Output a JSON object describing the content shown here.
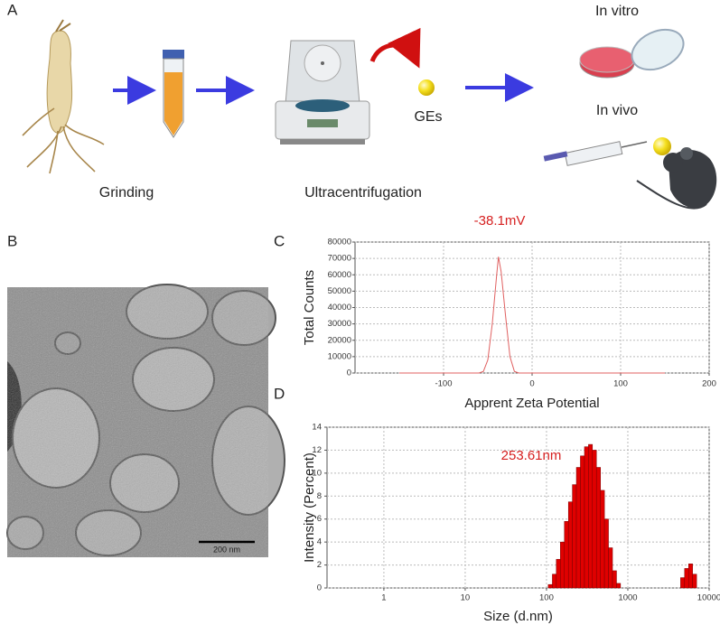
{
  "panel_labels": [
    "A",
    "B",
    "C",
    "D"
  ],
  "diagram": {
    "steps": [
      "Grinding",
      "Ultracentrifugation"
    ],
    "product": "GEs",
    "in_vitro": "In vitro",
    "in_vivo": "In vivo"
  },
  "micrograph": {
    "scale_bar": "200 nm"
  },
  "chart_data": [
    {
      "type": "line",
      "annotation": "-38.1mV",
      "annotation_color": "#d62020",
      "xlabel": "Apprent Zeta Potential",
      "ylabel": "Total Counts",
      "x": [
        -150,
        -60,
        -55,
        -50,
        -45,
        -40,
        -38,
        -35,
        -30,
        -25,
        -20,
        -15,
        150
      ],
      "series": [
        {
          "color": "#e06060",
          "values": [
            0,
            0,
            1000,
            8000,
            30000,
            60000,
            71000,
            62000,
            35000,
            10000,
            1000,
            0,
            0
          ]
        }
      ],
      "xlim": [
        -200,
        200
      ],
      "xticks": [
        -100,
        0,
        100,
        200
      ],
      "ylim": [
        0,
        80000
      ],
      "yticks": [
        0,
        10000,
        20000,
        30000,
        40000,
        50000,
        60000,
        70000,
        80000
      ],
      "grid": true
    },
    {
      "type": "histogram",
      "annotation": "253.61nm",
      "annotation_color": "#d62020",
      "xlabel": "Size (d.nm)",
      "ylabel": "Intensity (Percent)",
      "color": "#e00000",
      "xscale": "log",
      "bins": [
        105,
        118,
        132,
        148,
        166,
        186,
        208,
        233,
        261,
        293,
        328,
        367,
        411,
        461,
        516,
        578,
        648,
        726,
        813,
        911,
        1020,
        1143,
        1280,
        1434,
        1606,
        1798,
        2014,
        2256,
        2527,
        2830,
        3170,
        3550,
        3976,
        4453,
        4988,
        5586,
        6257,
        7008
      ],
      "values": [
        0.3,
        1.2,
        2.5,
        4.0,
        5.8,
        7.5,
        9.0,
        10.5,
        11.5,
        12.3,
        12.5,
        12.0,
        10.5,
        8.5,
        6.0,
        3.5,
        1.5,
        0.4,
        0,
        0,
        0,
        0,
        0,
        0,
        0,
        0,
        0,
        0,
        0,
        0,
        0,
        0,
        0,
        0.9,
        1.7,
        2.1,
        1.2
      ],
      "xlim": [
        0.2,
        10000
      ],
      "xticks": [
        1,
        10,
        100,
        1000,
        10000
      ],
      "ylim": [
        0,
        14
      ],
      "yticks": [
        0,
        2,
        4,
        6,
        8,
        10,
        12,
        14
      ],
      "grid": true
    }
  ]
}
